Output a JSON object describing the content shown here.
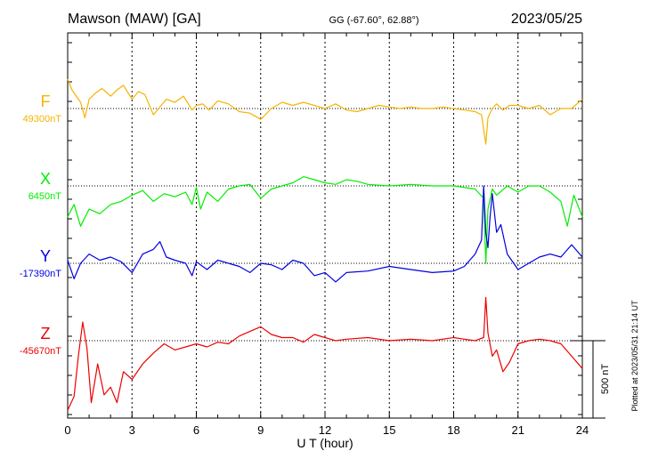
{
  "header": {
    "station": "Mawson (MAW)  [GA]",
    "coords": "GG (-67.60°,  62.88°)",
    "date": "2023/05/25"
  },
  "footer": {
    "plotted": "Plotted at 2023/05/31 21:14 UT"
  },
  "chart_data": {
    "type": "line",
    "xlabel": "U T (hour)",
    "xlim": [
      0,
      24
    ],
    "xticks": [
      "0",
      "3",
      "6",
      "9",
      "12",
      "15",
      "18",
      "21",
      "24"
    ],
    "scale_bar_label": "500 nT",
    "series": [
      {
        "name": "F",
        "baseline_label": "49300nT",
        "color": "#f5b400",
        "x": [
          0,
          0.2,
          0.4,
          0.6,
          0.8,
          1.0,
          1.3,
          1.6,
          2.0,
          2.3,
          2.6,
          3.0,
          3.3,
          3.6,
          4.0,
          4.3,
          4.6,
          5.0,
          5.4,
          5.8,
          6.0,
          6.3,
          6.6,
          7.0,
          7.5,
          8.0,
          8.5,
          9.0,
          9.5,
          10.0,
          10.5,
          11.0,
          11.5,
          12.0,
          12.5,
          13.0,
          13.5,
          14.0,
          14.5,
          15.0,
          15.5,
          16.0,
          16.5,
          17.0,
          17.5,
          18.0,
          18.5,
          19.0,
          19.3,
          19.5,
          19.6,
          19.8,
          20.0,
          20.3,
          20.6,
          21.0,
          21.5,
          22.0,
          22.5,
          23.0,
          23.5,
          24.0
        ],
        "y": [
          190,
          120,
          80,
          40,
          -60,
          60,
          100,
          130,
          80,
          120,
          150,
          60,
          110,
          90,
          -40,
          10,
          60,
          40,
          80,
          -10,
          20,
          30,
          -10,
          50,
          30,
          -20,
          -30,
          -70,
          0,
          40,
          20,
          40,
          20,
          0,
          30,
          -10,
          -20,
          0,
          20,
          10,
          0,
          10,
          0,
          0,
          10,
          0,
          -10,
          -20,
          -40,
          -230,
          -60,
          0,
          30,
          -10,
          20,
          20,
          0,
          20,
          -40,
          0,
          0,
          60
        ]
      },
      {
        "name": "X",
        "baseline_label": "6450nT",
        "color": "#00ee00",
        "x": [
          0,
          0.3,
          0.6,
          1.0,
          1.5,
          2.0,
          2.5,
          3.0,
          3.5,
          4.0,
          4.5,
          5.0,
          5.5,
          5.8,
          6.0,
          6.2,
          6.5,
          7.0,
          7.5,
          8.0,
          8.5,
          9.0,
          9.5,
          10.0,
          10.5,
          11.0,
          11.5,
          12.0,
          12.5,
          13.0,
          13.5,
          14.0,
          15.0,
          16.0,
          17.0,
          18.0,
          19.0,
          19.4,
          19.5,
          19.6,
          19.8,
          20.0,
          20.5,
          21.0,
          21.5,
          22.0,
          22.5,
          23.0,
          23.3,
          23.6,
          24.0
        ],
        "y": [
          -200,
          -120,
          -260,
          -150,
          -180,
          -120,
          -100,
          -60,
          -30,
          -100,
          -50,
          -70,
          -40,
          -120,
          -10,
          -150,
          -40,
          -100,
          -20,
          0,
          10,
          -80,
          -20,
          0,
          20,
          60,
          40,
          20,
          10,
          40,
          30,
          10,
          0,
          10,
          0,
          0,
          -20,
          -80,
          -500,
          -150,
          -20,
          -60,
          0,
          -40,
          0,
          0,
          -40,
          -100,
          -260,
          -60,
          -200
        ]
      },
      {
        "name": "Y",
        "baseline_label": "-17390nT",
        "color": "#0000e0",
        "x": [
          0,
          0.3,
          0.6,
          1.0,
          1.5,
          2.0,
          2.5,
          3.0,
          3.5,
          4.0,
          4.3,
          4.6,
          5.0,
          5.5,
          5.8,
          6.0,
          6.5,
          7.0,
          7.5,
          8.0,
          8.5,
          9.0,
          9.5,
          10.0,
          10.5,
          11.0,
          11.5,
          12.0,
          12.5,
          13.0,
          14.0,
          15.0,
          16.0,
          17.0,
          18.0,
          18.5,
          19.0,
          19.3,
          19.4,
          19.5,
          19.6,
          19.7,
          19.8,
          20.0,
          20.2,
          20.5,
          21.0,
          21.5,
          22.0,
          22.5,
          23.0,
          23.5,
          24.0
        ],
        "y": [
          20,
          -100,
          0,
          60,
          20,
          40,
          10,
          -60,
          60,
          90,
          140,
          40,
          20,
          0,
          -80,
          10,
          -40,
          20,
          0,
          -20,
          -60,
          0,
          -10,
          -40,
          20,
          0,
          -80,
          -60,
          -120,
          -60,
          -50,
          -20,
          -40,
          -60,
          -50,
          -20,
          60,
          150,
          500,
          200,
          100,
          300,
          450,
          200,
          250,
          60,
          -40,
          0,
          40,
          60,
          40,
          120,
          40
        ]
      },
      {
        "name": "Z",
        "baseline_label": "-45670nT",
        "color": "#ee0000",
        "x": [
          0,
          0.3,
          0.5,
          0.7,
          0.9,
          1.1,
          1.4,
          1.7,
          2.0,
          2.3,
          2.6,
          3.0,
          3.5,
          4.0,
          4.5,
          5.0,
          5.5,
          6.0,
          6.5,
          7.0,
          7.5,
          8.0,
          8.5,
          9.0,
          9.5,
          10.0,
          10.5,
          11.0,
          11.5,
          12.0,
          12.5,
          13.0,
          14.0,
          15.0,
          16.0,
          17.0,
          18.0,
          18.5,
          19.0,
          19.4,
          19.5,
          19.6,
          19.8,
          20.0,
          20.3,
          20.6,
          21.0,
          21.5,
          22.0,
          22.5,
          23.0,
          23.5,
          24.0
        ],
        "y": [
          -450,
          -360,
          -100,
          120,
          -50,
          -400,
          -150,
          -350,
          -300,
          -400,
          -200,
          -250,
          -150,
          -80,
          -20,
          -60,
          -40,
          -20,
          -40,
          -10,
          -20,
          30,
          60,
          90,
          40,
          20,
          20,
          -10,
          40,
          20,
          0,
          10,
          20,
          0,
          10,
          0,
          20,
          10,
          0,
          20,
          280,
          50,
          -100,
          -60,
          -200,
          -140,
          -20,
          0,
          10,
          0,
          -20,
          -100,
          -180
        ]
      }
    ]
  }
}
